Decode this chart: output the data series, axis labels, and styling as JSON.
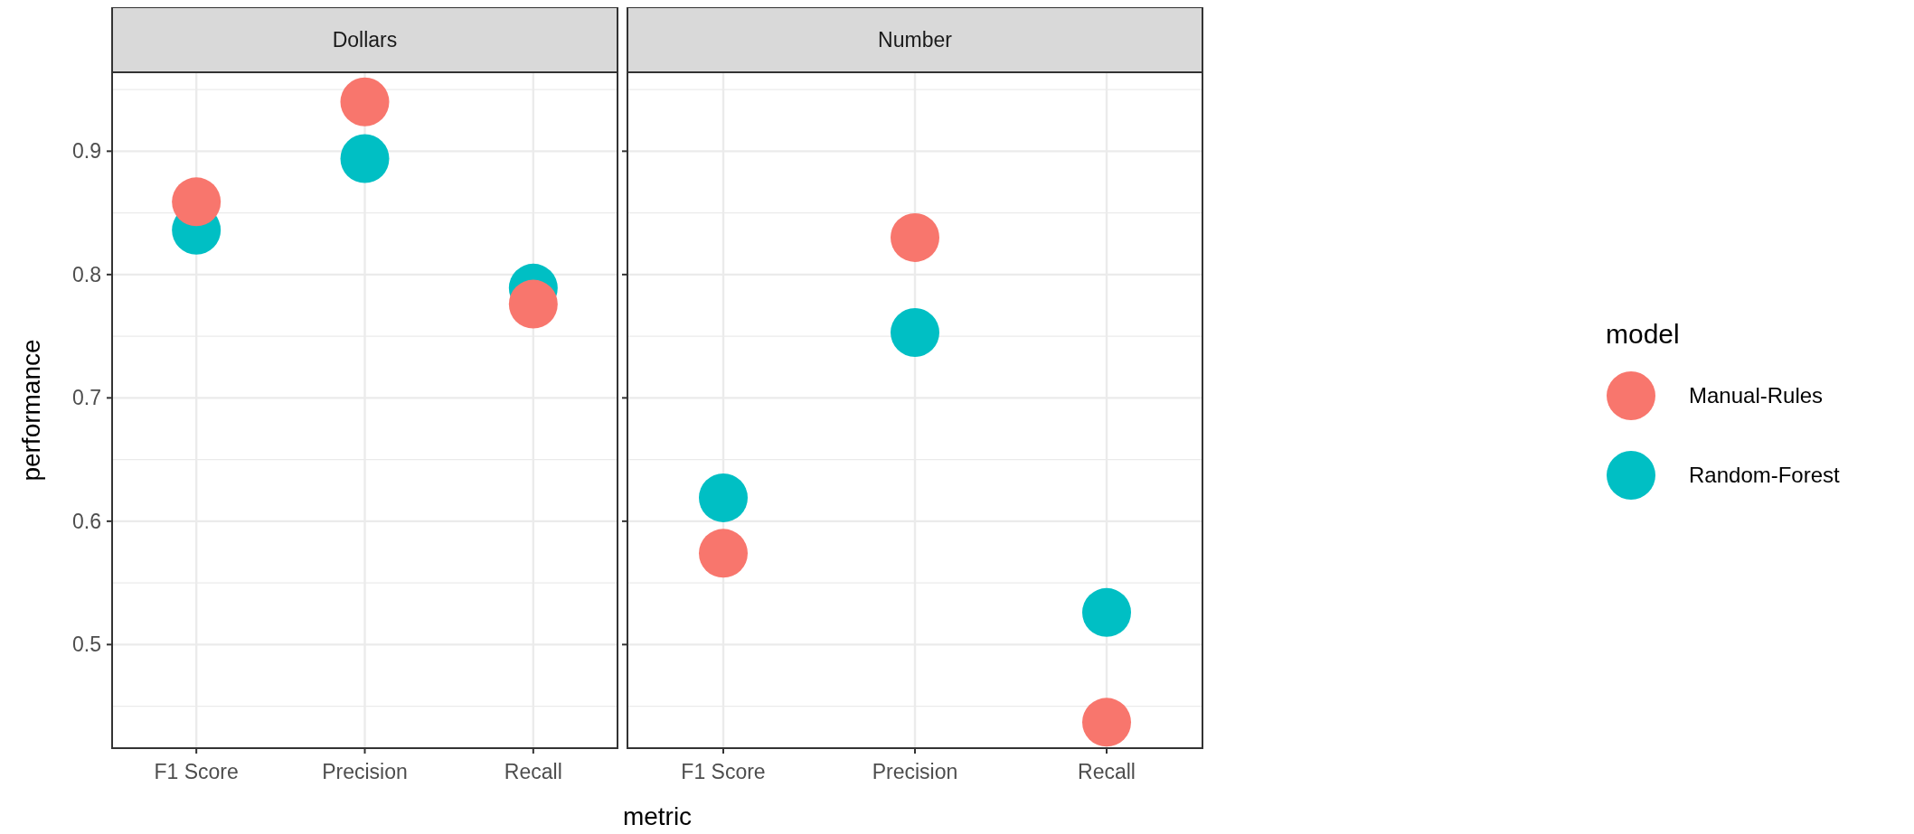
{
  "chart_data": [
    {
      "type": "scatter",
      "title": "Dollars",
      "xlabel": "metric",
      "ylabel": "performance",
      "legend_title": "model",
      "legend": "right",
      "grid": true,
      "marker": "circle",
      "categories": [
        "F1 Score",
        "Precision",
        "Recall"
      ],
      "ylim": [
        0.416,
        0.964
      ],
      "yticks": [
        {
          "value": 0.45,
          "label": null
        },
        0.5,
        {
          "value": 0.55,
          "label": null
        },
        0.6,
        {
          "value": 0.65,
          "label": null
        },
        0.7,
        {
          "value": 0.75,
          "label": null
        },
        0.8,
        {
          "value": 0.85,
          "label": null
        },
        0.9,
        {
          "value": 0.95,
          "label": null
        }
      ],
      "series": [
        {
          "name": "Random-Forest",
          "color": "#00bfc4",
          "values": [
            0.836,
            0.894,
            0.789
          ]
        },
        {
          "name": "Manual-Rules",
          "color": "#f8766d",
          "values": [
            0.859,
            0.94,
            0.776
          ]
        }
      ]
    },
    {
      "type": "scatter",
      "title": "Number",
      "grid": true,
      "marker": "circle",
      "tick_labels": "x",
      "categories": [
        "F1 Score",
        "Precision",
        "Recall"
      ],
      "ylim": [
        0.416,
        0.964
      ],
      "yticks": [
        {
          "value": 0.45,
          "label": null
        },
        0.5,
        {
          "value": 0.55,
          "label": null
        },
        0.6,
        {
          "value": 0.65,
          "label": null
        },
        0.7,
        {
          "value": 0.75,
          "label": null
        },
        0.8,
        {
          "value": 0.85,
          "label": null
        },
        0.9,
        {
          "value": 0.95,
          "label": null
        }
      ],
      "series": [
        {
          "color": "#00bfc4",
          "values": [
            0.619,
            0.753,
            0.526
          ]
        },
        {
          "color": "#f8766d",
          "values": [
            0.574,
            0.83,
            0.437
          ]
        }
      ]
    }
  ]
}
